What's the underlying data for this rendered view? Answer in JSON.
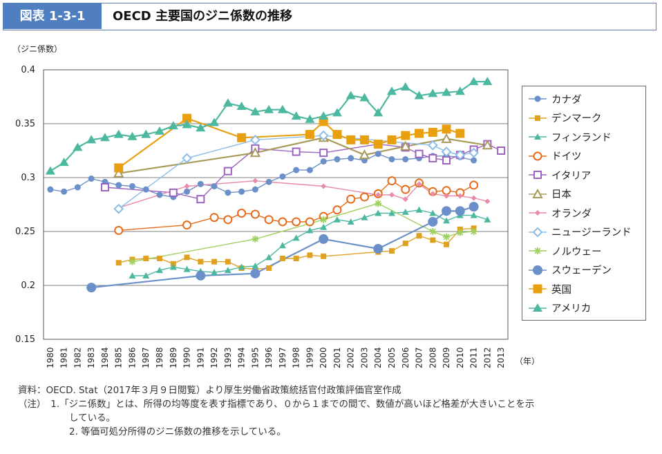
{
  "header": {
    "badge": "図表 1-3-1",
    "title": "OECD 主要国のジニ係数の推移"
  },
  "chart_data": {
    "type": "line",
    "ylabel": "（ジニ係数）",
    "xlabel": "（年）",
    "ylim": [
      0.15,
      0.4
    ],
    "yticks": [
      "0.15",
      "0.2",
      "0.25",
      "0.3",
      "0.35",
      "0.4"
    ],
    "x": [
      1980,
      1981,
      1982,
      1983,
      1984,
      1985,
      1986,
      1987,
      1988,
      1989,
      1990,
      1991,
      1992,
      1993,
      1994,
      1995,
      1996,
      1997,
      1998,
      1999,
      2000,
      2001,
      2002,
      2003,
      2004,
      2005,
      2006,
      2007,
      2008,
      2009,
      2010,
      2011,
      2012,
      2013
    ],
    "grid": "horizontal",
    "legend_position": "right",
    "series": [
      {
        "name": "カナダ",
        "color": "#6b8fc9",
        "marker": "circle-filled",
        "points": [
          [
            1980,
            0.289
          ],
          [
            1981,
            0.287
          ],
          [
            1982,
            0.291
          ],
          [
            1983,
            0.299
          ],
          [
            1984,
            0.296
          ],
          [
            1985,
            0.293
          ],
          [
            1986,
            0.292
          ],
          [
            1987,
            0.289
          ],
          [
            1988,
            0.284
          ],
          [
            1989,
            0.282
          ],
          [
            1990,
            0.287
          ],
          [
            1991,
            0.294
          ],
          [
            1992,
            0.292
          ],
          [
            1993,
            0.286
          ],
          [
            1994,
            0.287
          ],
          [
            1995,
            0.289
          ],
          [
            1996,
            0.296
          ],
          [
            1997,
            0.301
          ],
          [
            1998,
            0.307
          ],
          [
            1999,
            0.307
          ],
          [
            2000,
            0.315
          ],
          [
            2001,
            0.317
          ],
          [
            2002,
            0.318
          ],
          [
            2003,
            0.316
          ],
          [
            2004,
            0.322
          ],
          [
            2005,
            0.317
          ],
          [
            2006,
            0.317
          ],
          [
            2007,
            0.318
          ],
          [
            2008,
            0.32
          ],
          [
            2009,
            0.32
          ],
          [
            2010,
            0.319
          ],
          [
            2011,
            0.316
          ]
        ]
      },
      {
        "name": "デンマーク",
        "color": "#e0a020",
        "marker": "square-filled-small",
        "points": [
          [
            1985,
            0.221
          ],
          [
            1986,
            0.224
          ],
          [
            1987,
            0.225
          ],
          [
            1988,
            0.225
          ],
          [
            1989,
            0.22
          ],
          [
            1990,
            0.226
          ],
          [
            1991,
            0.222
          ],
          [
            1992,
            0.222
          ],
          [
            1993,
            0.222
          ],
          [
            1994,
            0.216
          ],
          [
            1995,
            0.215
          ],
          [
            1996,
            0.216
          ],
          [
            1997,
            0.225
          ],
          [
            1998,
            0.225
          ],
          [
            1999,
            0.228
          ],
          [
            2000,
            0.227
          ],
          [
            2004,
            0.231
          ],
          [
            2005,
            0.232
          ],
          [
            2006,
            0.239
          ],
          [
            2007,
            0.246
          ],
          [
            2008,
            0.242
          ],
          [
            2009,
            0.238
          ],
          [
            2010,
            0.252
          ],
          [
            2011,
            0.253
          ]
        ]
      },
      {
        "name": "フィンランド",
        "color": "#4cb8a0",
        "marker": "triangle-filled-small",
        "points": [
          [
            1986,
            0.209
          ],
          [
            1987,
            0.209
          ],
          [
            1988,
            0.214
          ],
          [
            1989,
            0.217
          ],
          [
            1990,
            0.215
          ],
          [
            1991,
            0.213
          ],
          [
            1992,
            0.212
          ],
          [
            1993,
            0.214
          ],
          [
            1994,
            0.217
          ],
          [
            1995,
            0.218
          ],
          [
            1996,
            0.226
          ],
          [
            1997,
            0.237
          ],
          [
            1998,
            0.244
          ],
          [
            1999,
            0.251
          ],
          [
            2000,
            0.254
          ],
          [
            2001,
            0.261
          ],
          [
            2002,
            0.259
          ],
          [
            2003,
            0.263
          ],
          [
            2004,
            0.267
          ],
          [
            2005,
            0.267
          ],
          [
            2006,
            0.268
          ],
          [
            2007,
            0.27
          ],
          [
            2008,
            0.267
          ],
          [
            2009,
            0.26
          ],
          [
            2010,
            0.265
          ],
          [
            2011,
            0.265
          ],
          [
            2012,
            0.261
          ]
        ]
      },
      {
        "name": "ドイツ",
        "color": "#e66a1a",
        "marker": "circle-open",
        "points": [
          [
            1985,
            0.251
          ],
          [
            1990,
            0.256
          ],
          [
            1992,
            0.263
          ],
          [
            1993,
            0.261
          ],
          [
            1994,
            0.267
          ],
          [
            1995,
            0.266
          ],
          [
            1996,
            0.261
          ],
          [
            1997,
            0.259
          ],
          [
            1998,
            0.259
          ],
          [
            1999,
            0.259
          ],
          [
            2000,
            0.264
          ],
          [
            2001,
            0.27
          ],
          [
            2002,
            0.28
          ],
          [
            2003,
            0.282
          ],
          [
            2004,
            0.285
          ],
          [
            2005,
            0.297
          ],
          [
            2006,
            0.289
          ],
          [
            2007,
            0.295
          ],
          [
            2008,
            0.287
          ],
          [
            2009,
            0.288
          ],
          [
            2010,
            0.286
          ],
          [
            2011,
            0.293
          ]
        ]
      },
      {
        "name": "イタリア",
        "color": "#9b62c0",
        "marker": "square-open",
        "points": [
          [
            1984,
            0.291
          ],
          [
            1989,
            0.286
          ],
          [
            1991,
            0.28
          ],
          [
            1993,
            0.306
          ],
          [
            1995,
            0.327
          ],
          [
            1998,
            0.324
          ],
          [
            2000,
            0.323
          ],
          [
            2004,
            0.331
          ],
          [
            2006,
            0.328
          ],
          [
            2007,
            0.322
          ],
          [
            2008,
            0.318
          ],
          [
            2009,
            0.316
          ],
          [
            2010,
            0.321
          ],
          [
            2011,
            0.326
          ],
          [
            2012,
            0.331
          ],
          [
            2013,
            0.325
          ]
        ]
      },
      {
        "name": "日本",
        "color": "#a89a5a",
        "marker": "triangle-open",
        "points": [
          [
            1985,
            0.304
          ],
          [
            1995,
            0.323
          ],
          [
            2000,
            0.337
          ],
          [
            2003,
            0.321
          ],
          [
            2006,
            0.329
          ],
          [
            2009,
            0.336
          ],
          [
            2012,
            0.33
          ]
        ]
      },
      {
        "name": "オランダ",
        "color": "#e88aa8",
        "marker": "diamond-filled-small",
        "points": [
          [
            1985,
            0.272
          ],
          [
            1990,
            0.292
          ],
          [
            1995,
            0.297
          ],
          [
            2000,
            0.292
          ],
          [
            2004,
            0.284
          ],
          [
            2005,
            0.284
          ],
          [
            2006,
            0.28
          ],
          [
            2007,
            0.294
          ],
          [
            2008,
            0.285
          ],
          [
            2009,
            0.283
          ],
          [
            2010,
            0.283
          ],
          [
            2011,
            0.281
          ],
          [
            2012,
            0.278
          ]
        ]
      },
      {
        "name": "ニュージーランド",
        "color": "#8cbde8",
        "marker": "diamond-open",
        "points": [
          [
            1985,
            0.271
          ],
          [
            1990,
            0.318
          ],
          [
            1995,
            0.335
          ],
          [
            2000,
            0.339
          ],
          [
            2008,
            0.33
          ],
          [
            2009,
            0.324
          ],
          [
            2010,
            0.321
          ],
          [
            2011,
            0.323
          ]
        ]
      },
      {
        "name": "ノルウェー",
        "color": "#a0d060",
        "marker": "asterisk",
        "points": [
          [
            1986,
            0.222
          ],
          [
            1995,
            0.243
          ],
          [
            2000,
            0.261
          ],
          [
            2004,
            0.276
          ],
          [
            2008,
            0.25
          ],
          [
            2009,
            0.245
          ],
          [
            2010,
            0.249
          ],
          [
            2011,
            0.25
          ]
        ]
      },
      {
        "name": "スウェーデン",
        "color": "#6b8fc9",
        "marker": "circle-filled-large",
        "points": [
          [
            1983,
            0.198
          ],
          [
            1991,
            0.209
          ],
          [
            1995,
            0.211
          ],
          [
            2000,
            0.243
          ],
          [
            2004,
            0.234
          ],
          [
            2008,
            0.259
          ],
          [
            2009,
            0.269
          ],
          [
            2010,
            0.269
          ],
          [
            2011,
            0.273
          ]
        ]
      },
      {
        "name": "英国",
        "color": "#e8a010",
        "marker": "square-filled-large",
        "points": [
          [
            1985,
            0.309
          ],
          [
            1990,
            0.355
          ],
          [
            1994,
            0.337
          ],
          [
            1999,
            0.34
          ],
          [
            2000,
            0.352
          ],
          [
            2001,
            0.34
          ],
          [
            2002,
            0.335
          ],
          [
            2003,
            0.335
          ],
          [
            2004,
            0.331
          ],
          [
            2005,
            0.335
          ],
          [
            2006,
            0.339
          ],
          [
            2007,
            0.341
          ],
          [
            2008,
            0.342
          ],
          [
            2009,
            0.345
          ],
          [
            2010,
            0.341
          ]
        ]
      },
      {
        "name": "アメリカ",
        "color": "#4cb8a0",
        "marker": "triangle-filled-large",
        "points": [
          [
            1980,
            0.306
          ],
          [
            1981,
            0.314
          ],
          [
            1982,
            0.328
          ],
          [
            1983,
            0.335
          ],
          [
            1984,
            0.337
          ],
          [
            1985,
            0.34
          ],
          [
            1986,
            0.338
          ],
          [
            1987,
            0.34
          ],
          [
            1988,
            0.343
          ],
          [
            1989,
            0.348
          ],
          [
            1990,
            0.349
          ],
          [
            1991,
            0.346
          ],
          [
            1992,
            0.351
          ],
          [
            1993,
            0.369
          ],
          [
            1994,
            0.366
          ],
          [
            1995,
            0.361
          ],
          [
            1996,
            0.363
          ],
          [
            1997,
            0.363
          ],
          [
            1998,
            0.357
          ],
          [
            1999,
            0.354
          ],
          [
            2000,
            0.357
          ],
          [
            2001,
            0.36
          ],
          [
            2002,
            0.376
          ],
          [
            2003,
            0.374
          ],
          [
            2004,
            0.36
          ],
          [
            2005,
            0.38
          ],
          [
            2006,
            0.384
          ],
          [
            2007,
            0.376
          ],
          [
            2008,
            0.378
          ],
          [
            2009,
            0.379
          ],
          [
            2010,
            0.38
          ],
          [
            2011,
            0.389
          ],
          [
            2012,
            0.389
          ]
        ]
      }
    ]
  },
  "footnotes": {
    "source": "資料：OECD. Stat（2017年３月９日閲覧）より厚生労働省政策統括官付政策評価官室作成",
    "note1": "（注）　1.「ジニ係数」とは、所得の均等度を表す指標であり、０から１までの間で、数値が高いほど格差が大きいことを示",
    "note1b": "している。",
    "note2": "2. 等価可処分所得のジニ係数の推移を示している。"
  }
}
